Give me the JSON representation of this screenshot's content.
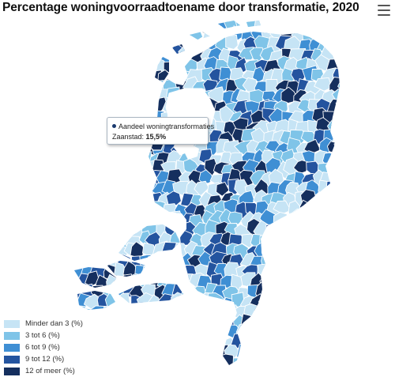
{
  "title": "Percentage woningvoorraadtoename door transformatie, 2020",
  "menu_icon": "hamburger-menu-icon",
  "tooltip": {
    "series": "Aandeel woningtransformaties",
    "municipality": "Zaanstad",
    "value": "15,5%",
    "dot_color": "#1a3a6e"
  },
  "legend": [
    {
      "label": "Minder dan 3 (%)",
      "color": "#c6e4f5"
    },
    {
      "label": "3 tot 6 (%)",
      "color": "#7fc4e8"
    },
    {
      "label": "6 tot 9 (%)",
      "color": "#3f8fd4"
    },
    {
      "label": "9 tot 12 (%)",
      "color": "#24549f"
    },
    {
      "label": "12 of meer (%)",
      "color": "#152f5e"
    }
  ],
  "chart_data": {
    "type": "choropleth",
    "title": "Percentage woningvoorraadtoename door transformatie, 2020",
    "classes": [
      "Minder dan 3 (%)",
      "3 tot 6 (%)",
      "6 tot 9 (%)",
      "9 tot 12 (%)",
      "12 of meer (%)"
    ],
    "highlight": {
      "name": "Zaanstad",
      "value": 15.5,
      "unit": "%"
    }
  }
}
